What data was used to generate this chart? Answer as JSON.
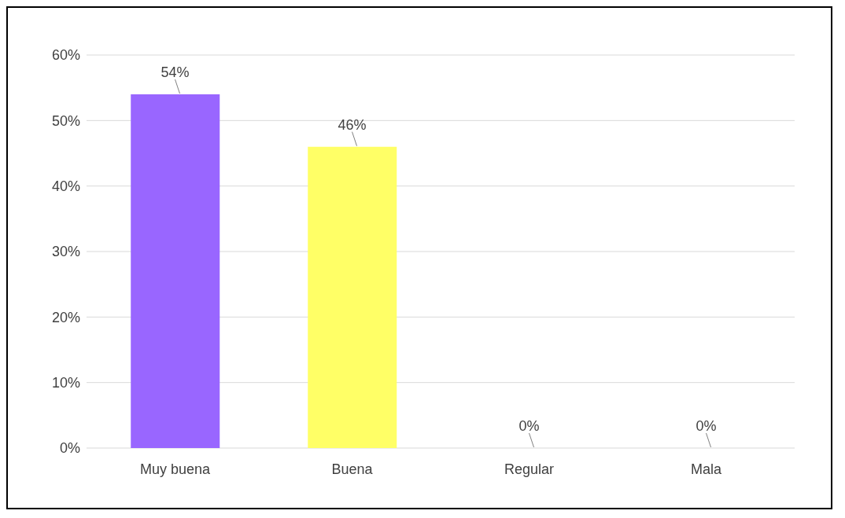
{
  "chart_data": {
    "type": "bar",
    "categories": [
      "Muy buena",
      "Buena",
      "Regular",
      "Mala"
    ],
    "values": [
      54,
      46,
      0,
      0
    ],
    "colors": [
      "#9966ff",
      "#ffff66",
      "#c0504d",
      "#7f007f"
    ],
    "value_labels": [
      "54%",
      "46%",
      "0%",
      "0%"
    ],
    "ylim": [
      0,
      60
    ],
    "yticks": [
      {
        "value": 0,
        "label": "0%"
      },
      {
        "value": 10,
        "label": "10%"
      },
      {
        "value": 20,
        "label": "20%"
      },
      {
        "value": 30,
        "label": "30%"
      },
      {
        "value": 40,
        "label": "40%"
      },
      {
        "value": 50,
        "label": "50%"
      },
      {
        "value": 60,
        "label": "60%"
      }
    ],
    "grid": "y",
    "legend": false
  }
}
